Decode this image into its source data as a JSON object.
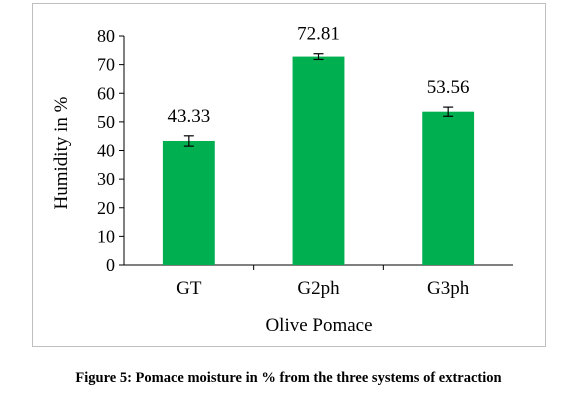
{
  "chart_data": {
    "type": "bar",
    "title": "",
    "xlabel": "Olive Pomace",
    "ylabel": "Humidity  in %",
    "categories": [
      "GT",
      "G2ph",
      "G3ph"
    ],
    "values": [
      43.33,
      72.81,
      53.56
    ],
    "value_labels": [
      "43.33",
      "72.81",
      "53.56"
    ],
    "error": [
      1.8,
      1.0,
      1.6
    ],
    "ylim": [
      0,
      80
    ],
    "yticks": [
      0,
      10,
      20,
      30,
      40,
      50,
      60,
      70,
      80
    ],
    "grid": false,
    "legend": "none",
    "bar_color": "#00b050"
  },
  "caption": "Figure 5: Pomace moisture in % from the three systems of extraction"
}
